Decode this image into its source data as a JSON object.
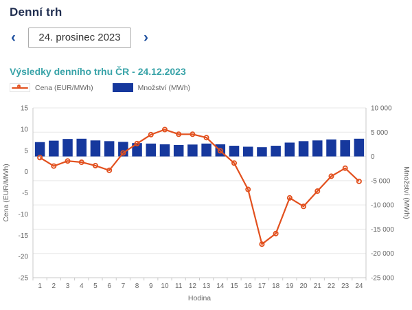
{
  "page": {
    "title": "Denní trh"
  },
  "date_nav": {
    "prev_icon": "‹",
    "next_icon": "›",
    "value": "24. prosinec 2023"
  },
  "section": {
    "title": "Výsledky denního trhu ČR - 24.12.2023"
  },
  "legend": [
    {
      "label": "Cena (EUR/MWh)",
      "type": "line"
    },
    {
      "label": "Množství (MWh)",
      "type": "bar"
    }
  ],
  "colors": {
    "header_navy": "#1f2d4f",
    "chevron_blue": "#1d4f9f",
    "section_teal": "#38a3a8",
    "price_line": "#e2501e",
    "volume_bar": "#16389d",
    "axis_text": "#666666",
    "gridline": "#e7e7e7",
    "axis_line": "#c9c9c9"
  },
  "chart_data": {
    "type": "combo-line-bar",
    "categories": [
      1,
      2,
      3,
      4,
      5,
      6,
      7,
      8,
      9,
      10,
      11,
      12,
      13,
      14,
      15,
      16,
      17,
      18,
      19,
      20,
      21,
      22,
      23,
      24
    ],
    "series": [
      {
        "name": "Cena (EUR/MWh)",
        "type": "line",
        "axis": "left",
        "color": "#e2501e",
        "values": [
          3.3,
          1.3,
          2.5,
          2.2,
          1.4,
          0.3,
          4.4,
          6.6,
          8.7,
          9.9,
          8.8,
          8.8,
          8.0,
          4.9,
          2.0,
          -4.2,
          -17.1,
          -14.6,
          -6.2,
          -8.2,
          -4.6,
          -1.1,
          0.8,
          -2.3
        ]
      },
      {
        "name": "Množství (MWh)",
        "type": "bar",
        "axis": "right",
        "color": "#16389d",
        "values": [
          2950,
          3250,
          3600,
          3650,
          3300,
          3150,
          3000,
          2750,
          2650,
          2500,
          2350,
          2450,
          2650,
          2500,
          2200,
          2000,
          1900,
          2200,
          2850,
          3150,
          3300,
          3500,
          3350,
          3650
        ]
      }
    ],
    "xlabel": "Hodina",
    "left_axis": {
      "title": "Cena (EUR/MWh)",
      "min": -25,
      "max": 15,
      "tick": 5
    },
    "right_axis": {
      "title": "Množství (MWh)",
      "min": -25000,
      "max": 10000,
      "tick": 5000
    },
    "grid": "horizontal lines at right-axis ticks",
    "legend_position": "top-left"
  }
}
